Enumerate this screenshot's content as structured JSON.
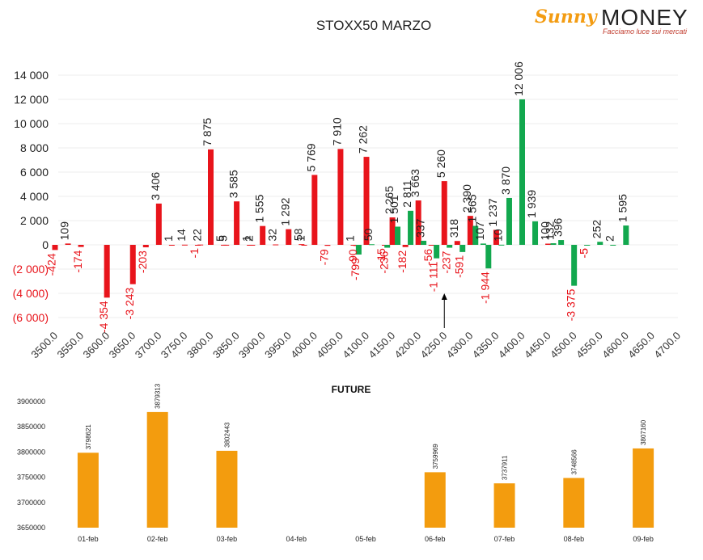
{
  "brand": {
    "sunny": "Sunny",
    "money": "MONEY",
    "tagline": "Facciamo luce sui mercati"
  },
  "chart_data": [
    {
      "type": "bar",
      "title": "STOXX50 MARZO",
      "ylim": [
        -7000,
        15000
      ],
      "yticks": [
        14000,
        12000,
        10000,
        8000,
        6000,
        4000,
        2000,
        0,
        -2000,
        -4000,
        -6000
      ],
      "ytick_labels": [
        "14 000",
        "12 000",
        "10 000",
        "8 000",
        "6 000",
        "4 000",
        "2 000",
        "0",
        "(2 000)",
        "(4 000)",
        "(6 000)"
      ],
      "xlim": [
        3500,
        4700
      ],
      "xticks": [
        3500,
        3550,
        3600,
        3650,
        3700,
        3750,
        3800,
        3850,
        3900,
        3950,
        4000,
        4050,
        4100,
        4150,
        4200,
        4250,
        4300,
        4350,
        4400,
        4450,
        4500,
        4550,
        4600,
        4650,
        4700
      ],
      "xtick_labels": [
        "3500.0",
        "3550.0",
        "3600.0",
        "3650.0",
        "3700.0",
        "3750.0",
        "3800.0",
        "3850.0",
        "3900.0",
        "3950.0",
        "4000.0",
        "4050.0",
        "4100.0",
        "4150.0",
        "4200.0",
        "4250.0",
        "4300.0",
        "4350.0",
        "4400.0",
        "4450.0",
        "4500.0",
        "4550.0",
        "4600.0",
        "4650.0",
        "4700.0"
      ],
      "colors": {
        "red": "#e8141b",
        "green": "#12a84e",
        "negative_label": "#e8141b"
      },
      "series": [
        {
          "color_key": "red",
          "points": [
            {
              "x": 3500,
              "y": -424,
              "label": "-424"
            },
            {
              "x": 3525,
              "y": 109,
              "label": "109"
            },
            {
              "x": 3550,
              "y": -174,
              "label": "-174"
            },
            {
              "x": 3600,
              "y": -4354,
              "label": "-4 354"
            },
            {
              "x": 3650,
              "y": -3243,
              "label": "-3 243"
            },
            {
              "x": 3675,
              "y": -203,
              "label": "-203"
            },
            {
              "x": 3700,
              "y": 3406,
              "label": "3 406"
            },
            {
              "x": 3725,
              "y": 1,
              "label": "1"
            },
            {
              "x": 3750,
              "y": 14,
              "label": "14"
            },
            {
              "x": 3775,
              "y": -1,
              "label": "-1"
            },
            {
              "x": 3780,
              "y": 22,
              "label": "22"
            },
            {
              "x": 3800,
              "y": 7875,
              "label": "7 875"
            },
            {
              "x": 3825,
              "y": 5,
              "label": "5"
            },
            {
              "x": 3830,
              "y": 5,
              "label": "5"
            },
            {
              "x": 3850,
              "y": 3585,
              "label": "3 585"
            },
            {
              "x": 3875,
              "y": 1,
              "label": "1"
            },
            {
              "x": 3880,
              "y": 2,
              "label": "2"
            },
            {
              "x": 3900,
              "y": 1555,
              "label": "1 555"
            },
            {
              "x": 3925,
              "y": 32,
              "label": "32"
            },
            {
              "x": 3950,
              "y": 1292,
              "label": "1 292"
            },
            {
              "x": 3975,
              "y": 58,
              "label": "58"
            },
            {
              "x": 3980,
              "y": 1,
              "label": "1"
            },
            {
              "x": 4000,
              "y": 5769,
              "label": "5 769"
            },
            {
              "x": 4025,
              "y": -79,
              "label": "-79"
            },
            {
              "x": 4050,
              "y": 7910,
              "label": "7 910"
            },
            {
              "x": 4075,
              "y": 1,
              "label": "1"
            },
            {
              "x": 4080,
              "y": -90,
              "label": "-90"
            },
            {
              "x": 4100,
              "y": 7262,
              "label": "7 262"
            },
            {
              "x": 4135,
              "y": -15,
              "label": "-15"
            },
            {
              "x": 4150,
              "y": 2265,
              "label": "2 265"
            },
            {
              "x": 4175,
              "y": -182,
              "label": "-182"
            },
            {
              "x": 4200,
              "y": 3663,
              "label": "3 663"
            },
            {
              "x": 4225,
              "y": -56,
              "label": "-56"
            },
            {
              "x": 4250,
              "y": 5260,
              "label": "5 260"
            },
            {
              "x": 4275,
              "y": 318,
              "label": "318"
            },
            {
              "x": 4300,
              "y": 2390,
              "label": "2 390"
            },
            {
              "x": 4350,
              "y": 1237,
              "label": "1 237"
            },
            {
              "x": 4450,
              "y": 100,
              "label": "100"
            },
            {
              "x": 4525,
              "y": -5,
              "label": "-5"
            }
          ]
        },
        {
          "color_key": "green",
          "points": [
            {
              "x": 4085,
              "y": -799,
              "label": "-799"
            },
            {
              "x": 4110,
              "y": 50,
              "label": "50"
            },
            {
              "x": 4140,
              "y": -236,
              "label": "-236"
            },
            {
              "x": 4160,
              "y": 1501,
              "label": "1 501"
            },
            {
              "x": 4185,
              "y": 2811,
              "label": "2 811"
            },
            {
              "x": 4210,
              "y": 337,
              "label": "337"
            },
            {
              "x": 4235,
              "y": -1111,
              "label": "-1 111"
            },
            {
              "x": 4260,
              "y": -237,
              "label": "-237"
            },
            {
              "x": 4285,
              "y": -591,
              "label": "-591"
            },
            {
              "x": 4310,
              "y": 1565,
              "label": "1 565"
            },
            {
              "x": 4325,
              "y": 107,
              "label": "107"
            },
            {
              "x": 4335,
              "y": -1944,
              "label": "-1 944"
            },
            {
              "x": 4360,
              "y": 10,
              "label": "10"
            },
            {
              "x": 4375,
              "y": 3870,
              "label": "3 870"
            },
            {
              "x": 4400,
              "y": 12006,
              "label": "12 006"
            },
            {
              "x": 4425,
              "y": 1939,
              "label": "1 939"
            },
            {
              "x": 4460,
              "y": 132,
              "label": "132"
            },
            {
              "x": 4475,
              "y": 396,
              "label": "396"
            },
            {
              "x": 4500,
              "y": -3375,
              "label": "-3 375"
            },
            {
              "x": 4525,
              "y": -5,
              "label": "-5"
            },
            {
              "x": 4550,
              "y": 252,
              "label": "252"
            },
            {
              "x": 4575,
              "y": 2,
              "label": "2"
            },
            {
              "x": 4600,
              "y": 1595,
              "label": "1 595"
            }
          ]
        }
      ],
      "annotation": {
        "type": "arrow",
        "x": 4250,
        "y_from": -7000,
        "y_to": -4000
      }
    },
    {
      "type": "bar",
      "title": "FUTURE",
      "categories": [
        "01-feb",
        "02-feb",
        "03-feb",
        "04-feb",
        "05-feb",
        "06-feb",
        "07-feb",
        "08-feb",
        "09-feb"
      ],
      "values": [
        3798621,
        3879313,
        3802443,
        null,
        null,
        3759969,
        3737911,
        3748566,
        3807160
      ],
      "value_labels": [
        "3798621",
        "3879313",
        "3802443",
        "",
        "",
        "3759969",
        "3737911",
        "3748566",
        "3807160"
      ],
      "ylim": [
        3650000,
        3900000
      ],
      "yticks": [
        3900000,
        3850000,
        3800000,
        3750000,
        3700000,
        3650000
      ],
      "ytick_labels": [
        "3900000",
        "3850000",
        "3800000",
        "3750000",
        "3700000",
        "3650000"
      ],
      "color": "#f39c0e"
    }
  ]
}
